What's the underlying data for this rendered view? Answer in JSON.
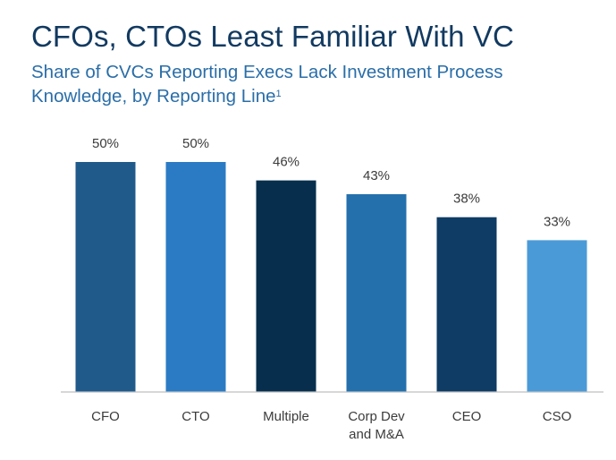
{
  "header": {
    "title": "CFOs, CTOs Least Familiar With VC",
    "subtitle_line1": "Share of CVCs Reporting Execs Lack Investment Process",
    "subtitle_line2": "Knowledge, by Reporting Line",
    "footnote_marker": "1"
  },
  "chart_data": {
    "type": "bar",
    "title": "CFOs, CTOs Least Familiar With VC",
    "subtitle": "Share of CVCs Reporting Execs Lack Investment Process Knowledge, by Reporting Line",
    "categories": [
      [
        "CFO"
      ],
      [
        "CTO"
      ],
      [
        "Multiple"
      ],
      [
        "Corp Dev",
        "and M&A"
      ],
      [
        "CEO"
      ],
      [
        "CSO"
      ]
    ],
    "values": [
      50,
      50,
      46,
      43,
      38,
      33
    ],
    "value_labels": [
      "50%",
      "50%",
      "46%",
      "43%",
      "38%",
      "33%"
    ],
    "colors": [
      "#1f5a8b",
      "#2b7bc4",
      "#072f4d",
      "#2470ad",
      "#0f3c64",
      "#4b9ad8"
    ],
    "ylim": [
      0,
      50
    ],
    "xlabel": "",
    "ylabel": "",
    "grid": false,
    "legend": "none"
  }
}
